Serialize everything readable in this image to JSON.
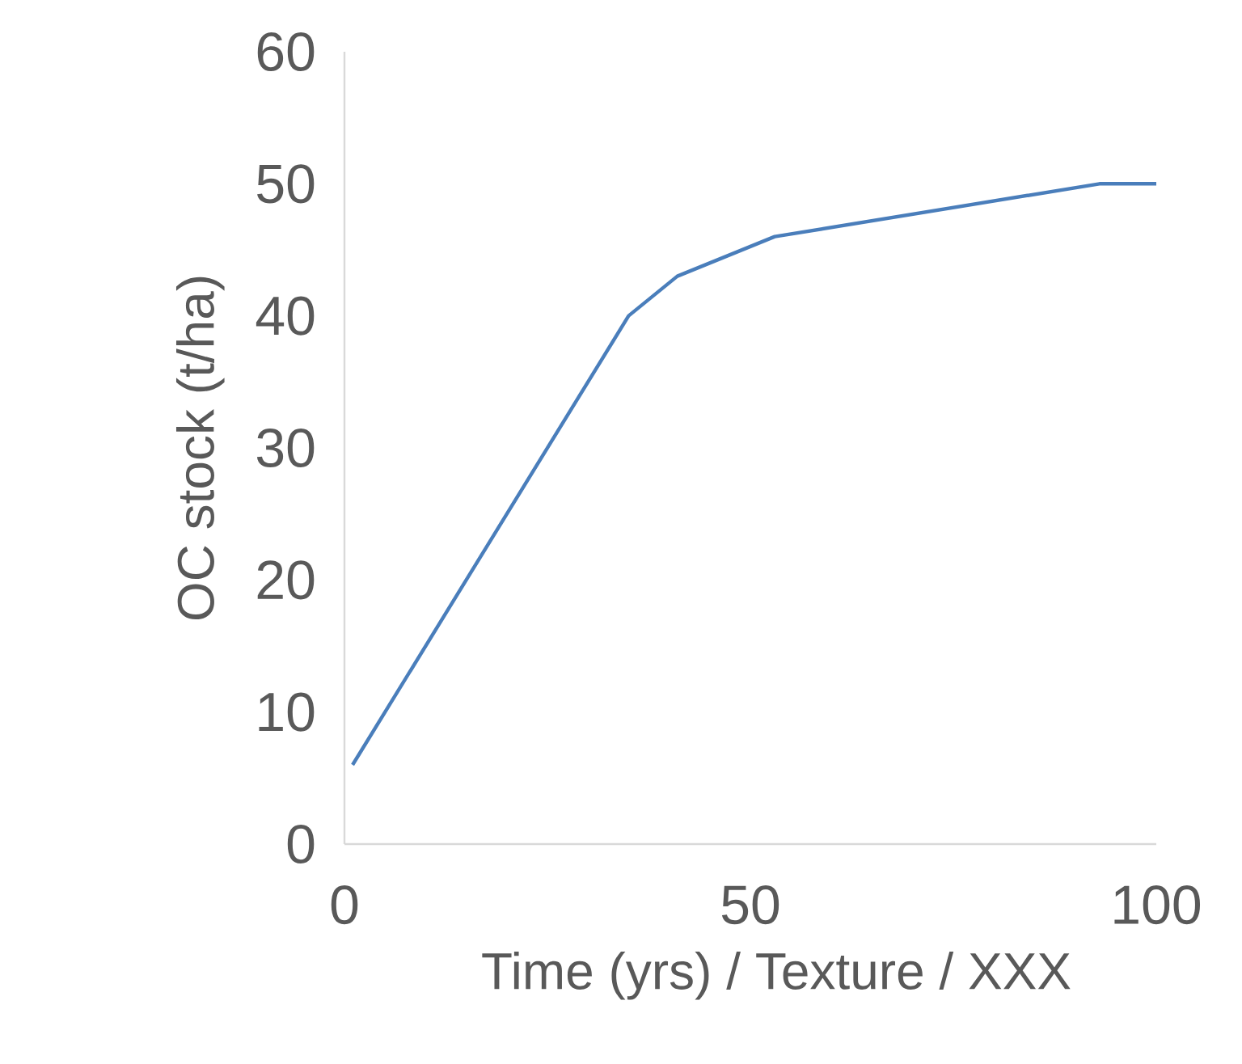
{
  "chart_data": {
    "type": "line",
    "xlabel": "Time (yrs) / Texture / XXX",
    "ylabel": "OC stock (t/ha)",
    "x": [
      1,
      35,
      41,
      53,
      93,
      100
    ],
    "series": [
      {
        "color": "#4a7ebb",
        "values": [
          6,
          40,
          43,
          46,
          50,
          50
        ]
      }
    ],
    "xlim": [
      0,
      100
    ],
    "ylim": [
      0,
      60
    ],
    "xticks": [
      0,
      50,
      100
    ],
    "yticks": [
      0,
      10,
      20,
      30,
      40,
      50,
      60
    ],
    "grid": false,
    "marker": "none",
    "line_style": "solid"
  }
}
